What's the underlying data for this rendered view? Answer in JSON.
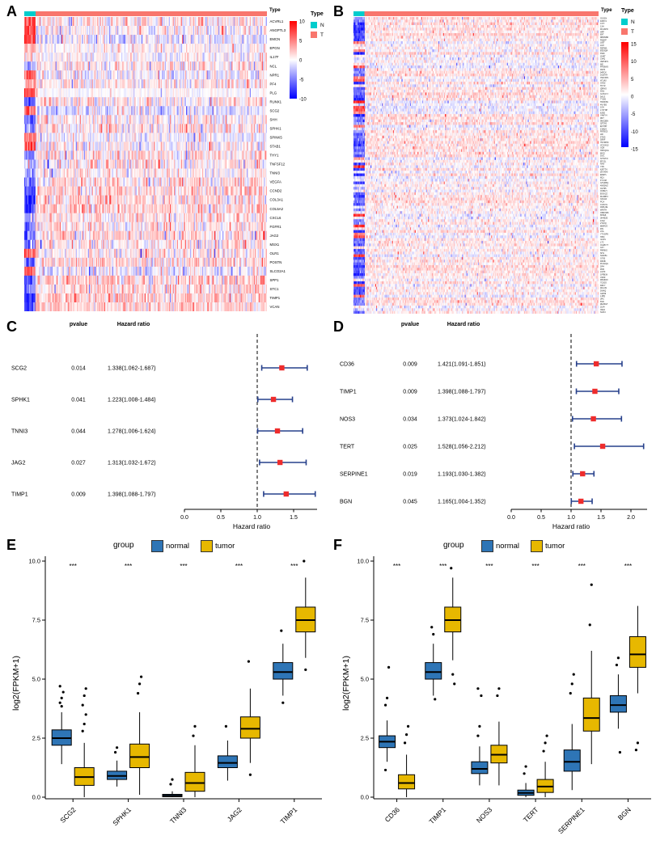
{
  "colors": {
    "type_n": "#00CDCD",
    "type_t": "#F8766D",
    "heat_pos": "#FF0000",
    "heat_neg": "#0000FF",
    "forest_square": "#EE2C2C",
    "forest_line": "#27408B",
    "normal_fill": "#2E75B6",
    "tumor_fill": "#E7B800"
  },
  "panels": {
    "A": {
      "letter": "A",
      "annotation_label": "Type",
      "legend_title": "Type",
      "legend_n": "N",
      "legend_t": "T"
    },
    "B": {
      "letter": "B",
      "annotation_label": "Type",
      "legend_title": "Type",
      "legend_n": "N",
      "legend_t": "T"
    },
    "C": {
      "letter": "C",
      "header_pvalue": "pvalue",
      "header_hr": "Hazard ratio",
      "axis_label": "Hazard ratio"
    },
    "D": {
      "letter": "D",
      "header_pvalue": "pvalue",
      "header_hr": "Hazard ratio",
      "axis_label": "Hazard ratio"
    },
    "E": {
      "letter": "E",
      "legend_title": "group",
      "legend_normal": "normal",
      "legend_tumor": "tumor",
      "ylabel": "log2(FPKM+1)"
    },
    "F": {
      "letter": "F",
      "legend_title": "group",
      "legend_normal": "normal",
      "legend_tumor": "tumor",
      "ylabel": "log2(FPKM+1)"
    }
  },
  "chart_data": [
    {
      "id": "A",
      "type": "heatmap",
      "legend": {
        "title": "Type",
        "items": [
          "N",
          "T"
        ]
      },
      "colorbar_ticks": [
        "10",
        "5",
        "0",
        "-5",
        "-10"
      ],
      "genes": [
        "ACVRL1",
        "ANGPTL3",
        "EMCN",
        "EPGN",
        "IL17F",
        "NCL",
        "NPR1",
        "PF4",
        "PLG",
        "RUNX1",
        "SCG2",
        "SHH",
        "SPHK1",
        "SPINK5",
        "STAB1",
        "THY1",
        "TNFSF12",
        "TNNI3",
        "VEGFA",
        "CCND2",
        "COL3A1",
        "COL5A2",
        "CXCL6",
        "FGFR1",
        "JAG2",
        "MSX1",
        "OLR1",
        "POSTN",
        "SLCO2A1",
        "SPP1",
        "STC1",
        "TIMP1",
        "VCAN"
      ],
      "row_bias": [
        [
          2.6,
          0.15,
          1
        ],
        [
          2.3,
          -0.05,
          1
        ],
        [
          2.4,
          -0.3,
          1
        ],
        [
          0.7,
          0.05,
          0.7
        ],
        [
          0.5,
          0,
          0.7
        ],
        [
          -1.2,
          0.2,
          1
        ],
        [
          2.1,
          -0.15,
          1
        ],
        [
          1.3,
          0.25,
          1
        ],
        [
          2.2,
          0.02,
          0.35
        ],
        [
          -2.2,
          0.3,
          1
        ],
        [
          2.4,
          -0.35,
          1
        ],
        [
          -1.8,
          0.2,
          1
        ],
        [
          -1.6,
          0.3,
          1
        ],
        [
          1.6,
          -0.2,
          0.8
        ],
        [
          2.3,
          0.05,
          1
        ],
        [
          -1.6,
          0.3,
          1
        ],
        [
          -1.1,
          0.2,
          1
        ],
        [
          -1.2,
          0.15,
          0.8
        ],
        [
          -1.9,
          0.35,
          1
        ],
        [
          -2.0,
          0.4,
          1
        ],
        [
          -2.5,
          0.55,
          1
        ],
        [
          -2.5,
          0.55,
          1
        ],
        [
          -1.2,
          0.3,
          1
        ],
        [
          -1.7,
          0.25,
          1
        ],
        [
          -2.0,
          0.4,
          1
        ],
        [
          -1.5,
          0.3,
          1
        ],
        [
          2.2,
          0.1,
          1
        ],
        [
          -2.1,
          0.5,
          1
        ],
        [
          1.8,
          -0.3,
          1
        ],
        [
          -2.3,
          0.6,
          1
        ],
        [
          -1.7,
          0.35,
          1
        ],
        [
          -2.3,
          0.6,
          1
        ],
        [
          -2.3,
          0.55,
          1
        ]
      ],
      "n_cols": 240,
      "n_fraction": 0.047,
      "noise": 0.2,
      "seed": 11
    },
    {
      "id": "B",
      "type": "heatmap",
      "legend": {
        "title": "Type",
        "items": [
          "N",
          "T"
        ]
      },
      "colorbar_ticks": [
        "15",
        "10",
        "5",
        "0",
        "-5",
        "-10",
        "-15"
      ],
      "labels_legible": false,
      "row_count": 110,
      "n_cols": 260,
      "n_fraction": 0.045,
      "noise": 0.12,
      "seed": 23
    },
    {
      "id": "C",
      "type": "forest",
      "axis_label": "Hazard ratio",
      "ref": 1.0,
      "ticks": [
        0,
        0.5,
        1,
        1.5
      ],
      "tick_labels": [
        "0.0",
        "0.5",
        "1.0",
        "1.5"
      ],
      "rows": [
        {
          "gene": "SCG2",
          "pvalue": "0.014",
          "text": "1.338(1.062-1.687)",
          "hr": 1.338,
          "lo": 1.062,
          "hi": 1.687
        },
        {
          "gene": "SPHK1",
          "pvalue": "0.041",
          "text": "1.223(1.008-1.484)",
          "hr": 1.223,
          "lo": 1.008,
          "hi": 1.484
        },
        {
          "gene": "TNNI3",
          "pvalue": "0.044",
          "text": "1.278(1.006-1.624)",
          "hr": 1.278,
          "lo": 1.006,
          "hi": 1.624
        },
        {
          "gene": "JAG2",
          "pvalue": "0.027",
          "text": "1.313(1.032-1.672)",
          "hr": 1.313,
          "lo": 1.032,
          "hi": 1.672
        },
        {
          "gene": "TIMP1",
          "pvalue": "0.009",
          "text": "1.398(1.088-1.797)",
          "hr": 1.398,
          "lo": 1.088,
          "hi": 1.797
        }
      ]
    },
    {
      "id": "D",
      "type": "forest",
      "axis_label": "Hazard ratio",
      "ref": 1.0,
      "ticks": [
        0,
        0.5,
        1,
        1.5,
        2
      ],
      "tick_labels": [
        "0.0",
        "0.5",
        "1.0",
        "1.5",
        "2.0"
      ],
      "rows": [
        {
          "gene": "CD36",
          "pvalue": "0.009",
          "text": "1.421(1.091-1.851)",
          "hr": 1.421,
          "lo": 1.091,
          "hi": 1.851
        },
        {
          "gene": "TIMP1",
          "pvalue": "0.009",
          "text": "1.398(1.088-1.797)",
          "hr": 1.398,
          "lo": 1.088,
          "hi": 1.797
        },
        {
          "gene": "NOS3",
          "pvalue": "0.034",
          "text": "1.373(1.024-1.842)",
          "hr": 1.373,
          "lo": 1.024,
          "hi": 1.842
        },
        {
          "gene": "TERT",
          "pvalue": "0.025",
          "text": "1.528(1.056-2.212)",
          "hr": 1.528,
          "lo": 1.056,
          "hi": 2.212
        },
        {
          "gene": "SERPINE1",
          "pvalue": "0.019",
          "text": "1.193(1.030-1.382)",
          "hr": 1.193,
          "lo": 1.03,
          "hi": 1.382
        },
        {
          "gene": "BGN",
          "pvalue": "0.045",
          "text": "1.165(1.004-1.352)",
          "hr": 1.165,
          "lo": 1.004,
          "hi": 1.352
        }
      ]
    },
    {
      "id": "E",
      "type": "box",
      "title": "",
      "ylabel": "log2(FPKM+1)",
      "sig": "***",
      "ylim": [
        -0.3,
        10.5
      ],
      "yticks": [
        0,
        2.5,
        5,
        7.5,
        10
      ],
      "ytick_labels": [
        "0.0",
        "2.5",
        "5.0",
        "7.5",
        "10.0"
      ],
      "legend": {
        "title": "group",
        "items": [
          "normal",
          "tumor"
        ],
        "position": "top"
      },
      "groups": [
        "normal",
        "tumor"
      ],
      "categories": [
        "SCG2",
        "SPHK1",
        "TNNI3",
        "JAG2",
        "TIMP1"
      ],
      "stats": {
        "normal": [
          [
            1.4,
            2.2,
            2.5,
            2.85,
            3.6,
            [
              4.0,
              4.2,
              4.45,
              4.7,
              3.85
            ]
          ],
          [
            0.45,
            0.75,
            0.9,
            1.1,
            1.55,
            [
              1.9,
              2.1
            ]
          ],
          [
            0,
            0.02,
            0.06,
            0.12,
            0.25,
            [
              0.55,
              0.75
            ]
          ],
          [
            0.7,
            1.25,
            1.45,
            1.75,
            2.4,
            [
              3.0
            ]
          ],
          [
            4.3,
            5.0,
            5.3,
            5.7,
            6.5,
            [
              7.05,
              4.0
            ]
          ]
        ],
        "tumor": [
          [
            0,
            0.5,
            0.85,
            1.25,
            2.3,
            [
              2.8,
              3.1,
              3.5,
              3.9,
              4.3,
              4.6
            ]
          ],
          [
            0.1,
            1.25,
            1.7,
            2.25,
            3.6,
            [
              4.4,
              4.8,
              5.1
            ]
          ],
          [
            0,
            0.25,
            0.6,
            1.05,
            2.2,
            [
              2.6,
              3.0
            ]
          ],
          [
            1.45,
            2.5,
            2.9,
            3.4,
            4.6,
            [
              5.75,
              0.95
            ]
          ],
          [
            5.9,
            7.0,
            7.5,
            8.05,
            9.3,
            [
              10.0,
              5.4
            ]
          ]
        ]
      }
    },
    {
      "id": "F",
      "type": "box",
      "title": "",
      "ylabel": "log2(FPKM+1)",
      "sig": "***",
      "ylim": [
        -0.3,
        10.5
      ],
      "yticks": [
        0,
        2.5,
        5,
        7.5,
        10
      ],
      "ytick_labels": [
        "0.0",
        "2.5",
        "5.0",
        "7.5",
        "10.0"
      ],
      "legend": {
        "title": "group",
        "items": [
          "normal",
          "tumor"
        ],
        "position": "top"
      },
      "groups": [
        "normal",
        "tumor"
      ],
      "categories": [
        "CD36",
        "TIMP1",
        "NOS3",
        "TERT",
        "SERPINE1",
        "BGN"
      ],
      "stats": {
        "normal": [
          [
            1.5,
            2.1,
            2.35,
            2.6,
            3.25,
            [
              3.9,
              4.2,
              5.5,
              1.15
            ]
          ],
          [
            4.3,
            5.0,
            5.3,
            5.7,
            6.5,
            [
              7.2,
              6.9,
              4.15
            ]
          ],
          [
            0.5,
            1.0,
            1.2,
            1.5,
            2.15,
            [
              2.6,
              3.0,
              4.3,
              4.6
            ]
          ],
          [
            0,
            0.08,
            0.18,
            0.3,
            0.6,
            [
              1.0,
              1.3
            ]
          ],
          [
            0.3,
            1.1,
            1.5,
            2.0,
            3.1,
            [
              4.4,
              4.8,
              5.2
            ]
          ],
          [
            2.9,
            3.6,
            3.9,
            4.3,
            5.2,
            [
              5.6,
              5.9,
              1.9
            ]
          ]
        ],
        "tumor": [
          [
            0,
            0.35,
            0.6,
            0.95,
            1.8,
            [
              2.3,
              2.65,
              3.0
            ]
          ],
          [
            5.8,
            7.0,
            7.5,
            8.05,
            9.3,
            [
              9.7,
              5.2,
              4.8
            ]
          ],
          [
            0.5,
            1.45,
            1.8,
            2.2,
            3.2,
            [
              4.3,
              4.6
            ]
          ],
          [
            0,
            0.2,
            0.45,
            0.75,
            1.5,
            [
              1.95,
              2.3,
              2.6
            ]
          ],
          [
            1.4,
            2.8,
            3.35,
            4.2,
            6.2,
            [
              7.3,
              9.0
            ]
          ],
          [
            4.4,
            5.5,
            6.05,
            6.8,
            8.1,
            [
              2.0,
              2.3
            ]
          ]
        ]
      }
    }
  ]
}
